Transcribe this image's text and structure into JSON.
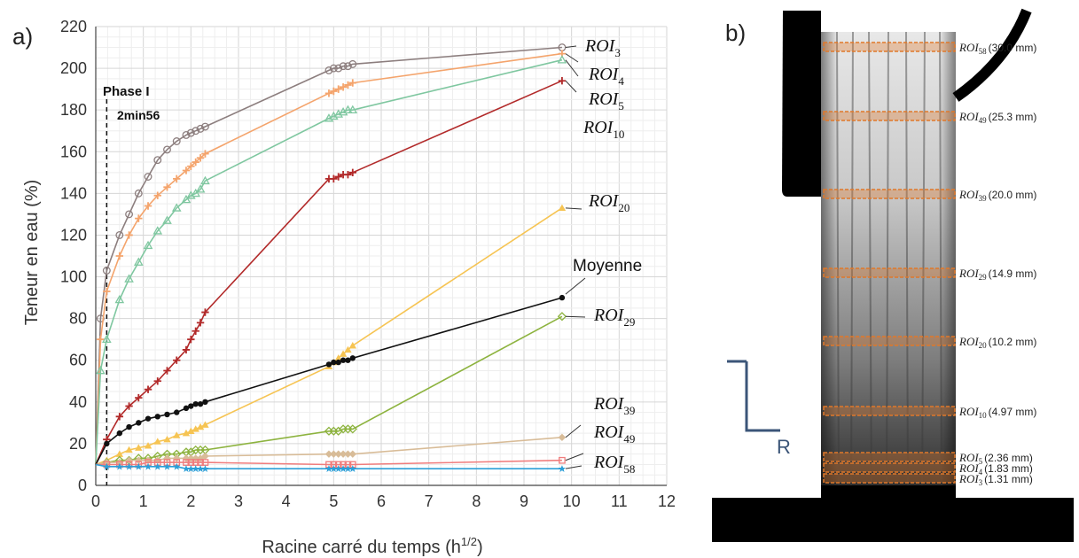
{
  "panel_a": {
    "panel_letter": "a)",
    "phase_label": "Phase I",
    "phase_time": "2min56",
    "mean_label": "Moyenne"
  },
  "panel_b": {
    "panel_letter": "b)",
    "axis_label": "R",
    "rois": [
      {
        "roi": "ROI",
        "sub": "58",
        "value": "(30.0 mm)"
      },
      {
        "roi": "ROI",
        "sub": "49",
        "value": "(25.3 mm)"
      },
      {
        "roi": "ROI",
        "sub": "39",
        "value": "(20.0 mm)"
      },
      {
        "roi": "ROI",
        "sub": "29",
        "value": "(14.9 mm)"
      },
      {
        "roi": "ROI",
        "sub": "20",
        "value": "(10.2 mm)"
      },
      {
        "roi": "ROI",
        "sub": "10",
        "value": "(4.97 mm)"
      },
      {
        "roi": "ROI",
        "sub": "5",
        "value": "(2.36 mm)"
      },
      {
        "roi": "ROI",
        "sub": "4",
        "value": "(1.83 mm)"
      },
      {
        "roi": "ROI",
        "sub": "3",
        "value": "(1.31 mm)"
      }
    ],
    "roi_color": "#e0782a"
  },
  "chart_data": {
    "type": "line",
    "xlabel": "Racine carré du temps (h",
    "xlabel_sup": "1/2",
    "xlabel_end": ")",
    "ylabel": "Teneur en eau (%)",
    "xlim": [
      0,
      12
    ],
    "ylim": [
      0,
      220
    ],
    "xticks": [
      "0",
      "1",
      "2",
      "3",
      "4",
      "5",
      "6",
      "7",
      "8",
      "9",
      "10",
      "11",
      "12"
    ],
    "yticks": [
      "0",
      "20",
      "40",
      "60",
      "80",
      "100",
      "120",
      "140",
      "160",
      "180",
      "200",
      "220"
    ],
    "grid": true,
    "phase_line_x": 0.23,
    "series": [
      {
        "name": "ROI",
        "sub": "3",
        "color": "#8c7e7e",
        "marker": "circle-open",
        "x": [
          0,
          0.1,
          0.23,
          0.5,
          0.7,
          0.9,
          1.1,
          1.3,
          1.5,
          1.7,
          1.9,
          2.0,
          2.1,
          2.2,
          2.3,
          4.9,
          5.0,
          5.1,
          5.2,
          5.3,
          5.4,
          9.8
        ],
        "y": [
          10,
          80,
          103,
          120,
          130,
          140,
          148,
          156,
          161,
          165,
          168,
          169,
          170,
          171,
          172,
          199,
          200,
          200,
          201,
          201,
          202,
          210
        ]
      },
      {
        "name": "ROI",
        "sub": "4",
        "color": "#f4a46c",
        "marker": "plus",
        "x": [
          0,
          0.1,
          0.23,
          0.5,
          0.7,
          0.9,
          1.1,
          1.3,
          1.5,
          1.7,
          1.9,
          2.0,
          2.1,
          2.2,
          2.3,
          4.9,
          5.0,
          5.1,
          5.2,
          5.3,
          5.4,
          9.8
        ],
        "y": [
          10,
          70,
          93,
          110,
          120,
          128,
          134,
          139,
          143,
          147,
          151,
          153,
          155,
          157,
          159,
          188,
          189,
          190,
          191,
          192,
          193,
          207
        ]
      },
      {
        "name": "ROI",
        "sub": "5",
        "color": "#7fc7a0",
        "marker": "triangle-open",
        "x": [
          0,
          0.1,
          0.23,
          0.5,
          0.7,
          0.9,
          1.1,
          1.3,
          1.5,
          1.7,
          1.9,
          2.0,
          2.1,
          2.2,
          2.3,
          4.9,
          5.0,
          5.1,
          5.2,
          5.3,
          5.4,
          9.8
        ],
        "y": [
          10,
          55,
          70,
          89,
          99,
          107,
          115,
          122,
          127,
          133,
          137,
          139,
          140,
          142,
          146,
          176,
          177,
          178,
          179,
          180,
          180,
          204
        ]
      },
      {
        "name": "ROI",
        "sub": "10",
        "color": "#b22a2a",
        "marker": "plus",
        "x": [
          0,
          0.23,
          0.5,
          0.7,
          0.9,
          1.1,
          1.3,
          1.5,
          1.7,
          1.9,
          2.0,
          2.1,
          2.2,
          2.3,
          4.9,
          5.0,
          5.1,
          5.2,
          5.3,
          5.4,
          9.8
        ],
        "y": [
          10,
          22,
          33,
          38,
          42,
          46,
          50,
          55,
          60,
          65,
          70,
          74,
          78,
          83,
          147,
          147,
          148,
          149,
          149,
          150,
          194
        ]
      },
      {
        "name": "ROI",
        "sub": "20",
        "color": "#f6c453",
        "marker": "triangle",
        "x": [
          0,
          0.23,
          0.5,
          0.7,
          0.9,
          1.1,
          1.3,
          1.5,
          1.7,
          1.9,
          2.0,
          2.1,
          2.2,
          2.3,
          4.9,
          5.0,
          5.1,
          5.2,
          5.3,
          5.4,
          9.8
        ],
        "y": [
          10,
          12,
          15,
          17,
          18,
          19,
          21,
          22,
          24,
          25,
          26,
          27,
          28,
          29,
          57,
          59,
          61,
          63,
          65,
          67,
          133
        ]
      },
      {
        "name": "Moyenne",
        "sub": "",
        "color": "#111111",
        "marker": "dot",
        "x": [
          0,
          0.23,
          0.5,
          0.7,
          0.9,
          1.1,
          1.3,
          1.5,
          1.7,
          1.9,
          2.0,
          2.1,
          2.2,
          2.3,
          4.9,
          5.0,
          5.1,
          5.2,
          5.3,
          5.4,
          9.8
        ],
        "y": [
          10,
          20,
          25,
          28,
          30,
          32,
          33,
          34,
          35,
          37,
          38,
          39,
          39,
          40,
          58,
          59,
          59,
          60,
          60,
          61,
          90
        ]
      },
      {
        "name": "ROI",
        "sub": "29",
        "color": "#8db33f",
        "marker": "diamond-open",
        "x": [
          0,
          0.23,
          0.5,
          0.7,
          0.9,
          1.1,
          1.3,
          1.5,
          1.7,
          1.9,
          2.0,
          2.1,
          2.2,
          2.3,
          4.9,
          5.0,
          5.1,
          5.2,
          5.3,
          5.4,
          9.8
        ],
        "y": [
          10,
          11,
          12,
          12,
          13,
          13,
          14,
          15,
          15,
          16,
          16,
          17,
          17,
          17,
          26,
          26,
          26,
          27,
          27,
          27,
          81
        ]
      },
      {
        "name": "ROI",
        "sub": "39",
        "color": "#d8bc98",
        "marker": "diamond",
        "x": [
          0,
          0.23,
          0.5,
          0.7,
          0.9,
          1.1,
          1.3,
          1.5,
          1.7,
          1.9,
          2.0,
          2.1,
          2.2,
          2.3,
          4.9,
          5.0,
          5.1,
          5.2,
          5.3,
          5.4,
          9.8
        ],
        "y": [
          10,
          11,
          11,
          12,
          12,
          12,
          12,
          13,
          13,
          13,
          13,
          13,
          13,
          14,
          15,
          15,
          15,
          15,
          15,
          15,
          23
        ]
      },
      {
        "name": "ROI",
        "sub": "49",
        "color": "#f07d7d",
        "marker": "square-open",
        "x": [
          0,
          0.23,
          0.5,
          0.7,
          0.9,
          1.1,
          1.3,
          1.5,
          1.7,
          1.9,
          2.0,
          2.1,
          2.2,
          2.3,
          4.9,
          5.0,
          5.1,
          5.2,
          5.3,
          5.4,
          9.8
        ],
        "y": [
          10,
          10,
          10,
          10,
          10,
          11,
          11,
          11,
          11,
          11,
          11,
          11,
          11,
          11,
          10,
          10,
          10,
          10,
          10,
          10,
          12
        ]
      },
      {
        "name": "ROI",
        "sub": "58",
        "color": "#2c9fd8",
        "marker": "star",
        "x": [
          0,
          0.23,
          0.5,
          0.7,
          0.9,
          1.1,
          1.3,
          1.5,
          1.7,
          1.9,
          2.0,
          2.1,
          2.2,
          2.3,
          4.9,
          5.0,
          5.1,
          5.2,
          5.3,
          5.4,
          9.8
        ],
        "y": [
          10,
          9,
          9,
          9,
          9,
          9,
          9,
          9,
          9,
          8,
          8,
          8,
          8,
          8,
          8,
          8,
          8,
          8,
          8,
          8,
          8
        ]
      }
    ]
  }
}
